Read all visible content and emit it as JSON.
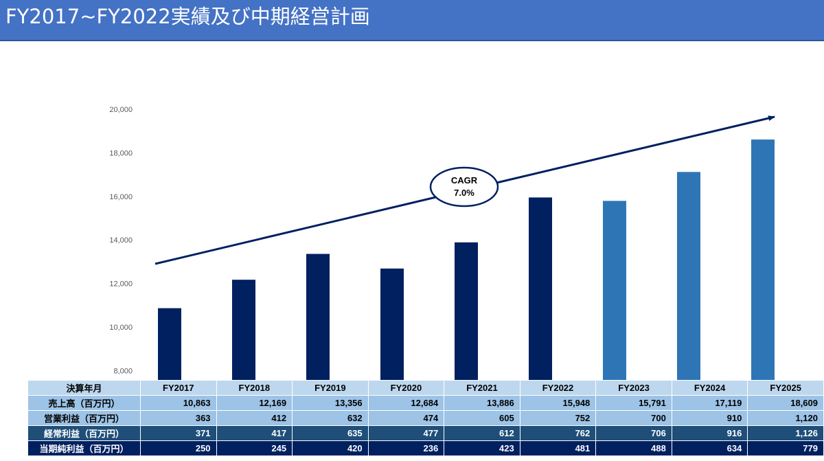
{
  "header": {
    "title": "FY2017~FY2022実績及び中期経営計画"
  },
  "colors": {
    "header_bg": "#4472c4",
    "actual_bar": "#002060",
    "plan_bar": "#2e75b6",
    "arrow": "#002060"
  },
  "chart_data": {
    "type": "bar",
    "categories": [
      "FY2017",
      "FY2018",
      "FY2019",
      "FY2020",
      "FY2021",
      "FY2022",
      "FY2023",
      "FY2024",
      "FY2025"
    ],
    "values": [
      10863,
      12169,
      13356,
      12684,
      13886,
      15948,
      15791,
      17119,
      18609
    ],
    "bar_colors": [
      "#002060",
      "#002060",
      "#002060",
      "#002060",
      "#002060",
      "#002060",
      "#2e75b6",
      "#2e75b6",
      "#2e75b6"
    ],
    "ylim": [
      7000,
      20000
    ],
    "yticks": [
      "8,000",
      "10,000",
      "12,000",
      "14,000",
      "16,000",
      "18,000",
      "20,000"
    ],
    "grid": false,
    "annotation": {
      "line1": "CAGR",
      "line2": "7.0%"
    }
  },
  "table": {
    "header_label": "決算年月",
    "years": [
      "FY2017",
      "FY2018",
      "FY2019",
      "FY2020",
      "FY2021",
      "FY2022",
      "FY2023",
      "FY2024",
      "FY2025"
    ],
    "rows": [
      {
        "label": "売上高（百万円）",
        "values": [
          "10,863",
          "12,169",
          "13,356",
          "12,684",
          "13,886",
          "15,948",
          "15,791",
          "17,119",
          "18,609"
        ]
      },
      {
        "label": "営業利益（百万円）",
        "values": [
          "363",
          "412",
          "632",
          "474",
          "605",
          "752",
          "700",
          "910",
          "1,120"
        ]
      },
      {
        "label": "経常利益（百万円）",
        "values": [
          "371",
          "417",
          "635",
          "477",
          "612",
          "762",
          "706",
          "916",
          "1,126"
        ]
      },
      {
        "label": "当期純利益（百万円）",
        "values": [
          "250",
          "245",
          "420",
          "236",
          "423",
          "481",
          "488",
          "634",
          "779"
        ]
      }
    ]
  }
}
